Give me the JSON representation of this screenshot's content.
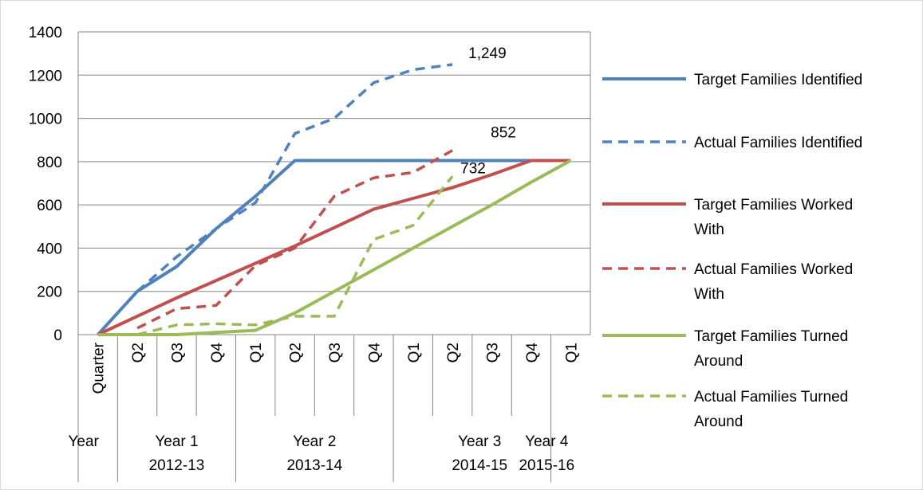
{
  "chart_data": {
    "type": "line",
    "title": "",
    "xlabel": "",
    "ylabel": "",
    "ylim": [
      0,
      1400
    ],
    "yticks": [
      0,
      200,
      400,
      600,
      800,
      1000,
      1200,
      1400
    ],
    "grid": true,
    "legend_position": "right",
    "x_quarter_labels": [
      "Quarter",
      "Q2",
      "Q3",
      "Q4",
      "Q1",
      "Q2",
      "Q3",
      "Q4",
      "Q1",
      "Q2",
      "Q3",
      "Q4",
      "Q1"
    ],
    "x_year_labels": [
      {
        "line1": "Year",
        "line2": ""
      },
      {
        "line1": "Year 1",
        "line2": "2012-13"
      },
      {
        "line1": "Year 2",
        "line2": "2013-14"
      },
      {
        "line1": "Year 3",
        "line2": "2014-15"
      },
      {
        "line1": "Year 4",
        "line2": "2015-16"
      }
    ],
    "series": [
      {
        "name": "Target Families Identified",
        "color": "#4f81bd",
        "style": "solid",
        "values": [
          0,
          200,
          315,
          490,
          640,
          805,
          805,
          805,
          805,
          805,
          805,
          805,
          805
        ]
      },
      {
        "name": "Actual Families Identified",
        "color": "#4f81bd",
        "style": "dashed",
        "values": [
          null,
          200,
          360,
          490,
          610,
          930,
          1000,
          1165,
          1225,
          1249,
          null,
          null,
          null
        ]
      },
      {
        "name": "Target Families Worked With",
        "color": "#c0504d",
        "style": "solid",
        "values": [
          0,
          85,
          170,
          250,
          330,
          410,
          495,
          580,
          630,
          680,
          740,
          805,
          805
        ]
      },
      {
        "name": "Actual Families Worked With",
        "color": "#c0504d",
        "style": "dashed",
        "values": [
          null,
          30,
          120,
          135,
          320,
          400,
          640,
          725,
          750,
          852,
          null,
          null,
          null
        ]
      },
      {
        "name": "Target Families Turned Around",
        "color": "#9bbb59",
        "style": "solid",
        "values": [
          0,
          0,
          0,
          10,
          20,
          100,
          200,
          300,
          400,
          500,
          600,
          705,
          805
        ]
      },
      {
        "name": "Actual Families Turned Around",
        "color": "#9bbb59",
        "style": "dashed",
        "values": [
          null,
          0,
          45,
          50,
          45,
          85,
          85,
          440,
          505,
          732,
          null,
          null,
          null
        ]
      }
    ],
    "annotations": [
      {
        "text": "1,249",
        "x": 9,
        "y": 1249
      },
      {
        "text": "852",
        "x": 9,
        "y": 852
      },
      {
        "text": "732",
        "x": 9,
        "y": 732
      }
    ],
    "legend": [
      {
        "lines": [
          "Target Families Identified"
        ]
      },
      {
        "lines": [
          "Actual Families Identified"
        ]
      },
      {
        "lines": [
          "Target Families Worked",
          "With"
        ]
      },
      {
        "lines": [
          "Actual Families Worked",
          "With"
        ]
      },
      {
        "lines": [
          "Target Families Turned",
          "Around"
        ]
      },
      {
        "lines": [
          "Actual Families Turned",
          "Around"
        ]
      }
    ]
  }
}
